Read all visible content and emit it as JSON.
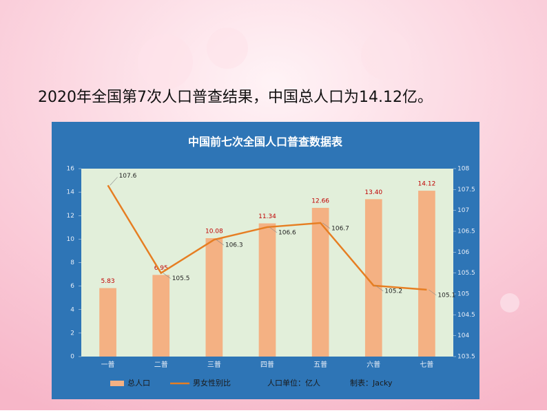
{
  "heading": "2020年全国第7次人口普查结果，中国总人口为14.12亿。",
  "chart_data": {
    "type": "bar",
    "title": "中国前七次全国人口普查数据表",
    "categories": [
      "一普",
      "二普",
      "三普",
      "四普",
      "五普",
      "六普",
      "七普"
    ],
    "series": [
      {
        "name": "总人口",
        "type": "bar",
        "color": "#f4b183",
        "values": [
          5.83,
          6.95,
          10.08,
          11.34,
          12.66,
          13.4,
          14.12
        ],
        "value_labels": [
          "5.83",
          "6.95",
          "10.08",
          "11.34",
          "12.66",
          "13.40",
          "14.12"
        ]
      },
      {
        "name": "男女性别比",
        "type": "line",
        "axis": "y2",
        "color": "#e67e22",
        "values": [
          107.6,
          105.5,
          106.3,
          106.6,
          106.7,
          105.2,
          105.1
        ]
      }
    ],
    "ylim": [
      0,
      16
    ],
    "yticks": [
      0,
      2,
      4,
      6,
      8,
      10,
      12,
      14,
      16
    ],
    "y2lim": [
      103.5,
      108
    ],
    "y2ticks": [
      103.5,
      104,
      104.5,
      105,
      105.5,
      106,
      106.5,
      107,
      107.5,
      108
    ],
    "legend": "bottom",
    "grid": false,
    "unit_note": "人口单位：亿人",
    "credit": "制表：Jacky"
  }
}
